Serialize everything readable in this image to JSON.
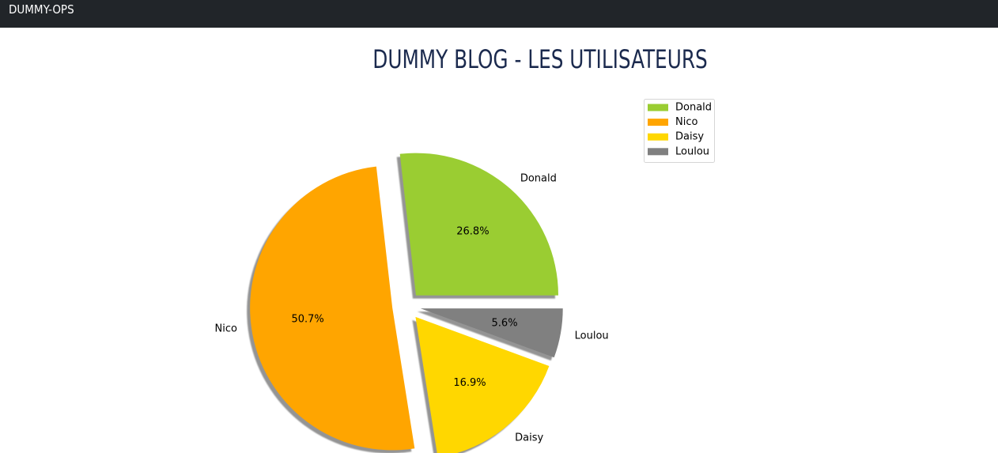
{
  "navbar": {
    "brand": "DUMMY-OPS"
  },
  "page": {
    "title": "DUMMY BLOG - LES UTILISATEURS"
  },
  "chart_data": {
    "type": "pie",
    "categories": [
      "Donald",
      "Nico",
      "Daisy",
      "Loulou"
    ],
    "values": [
      26.8,
      50.7,
      16.9,
      5.6
    ],
    "value_labels": [
      "26.8%",
      "50.7%",
      "16.9%",
      "5.6%"
    ],
    "colors": [
      "#9acd32",
      "#ffa500",
      "#ffd700",
      "#808080"
    ],
    "exploded": true,
    "shadow": true,
    "start_angle_deg": 0,
    "direction": "counterclockwise",
    "legend": {
      "placement": "top-right",
      "entries": [
        "Donald",
        "Nico",
        "Daisy",
        "Loulou"
      ]
    }
  }
}
